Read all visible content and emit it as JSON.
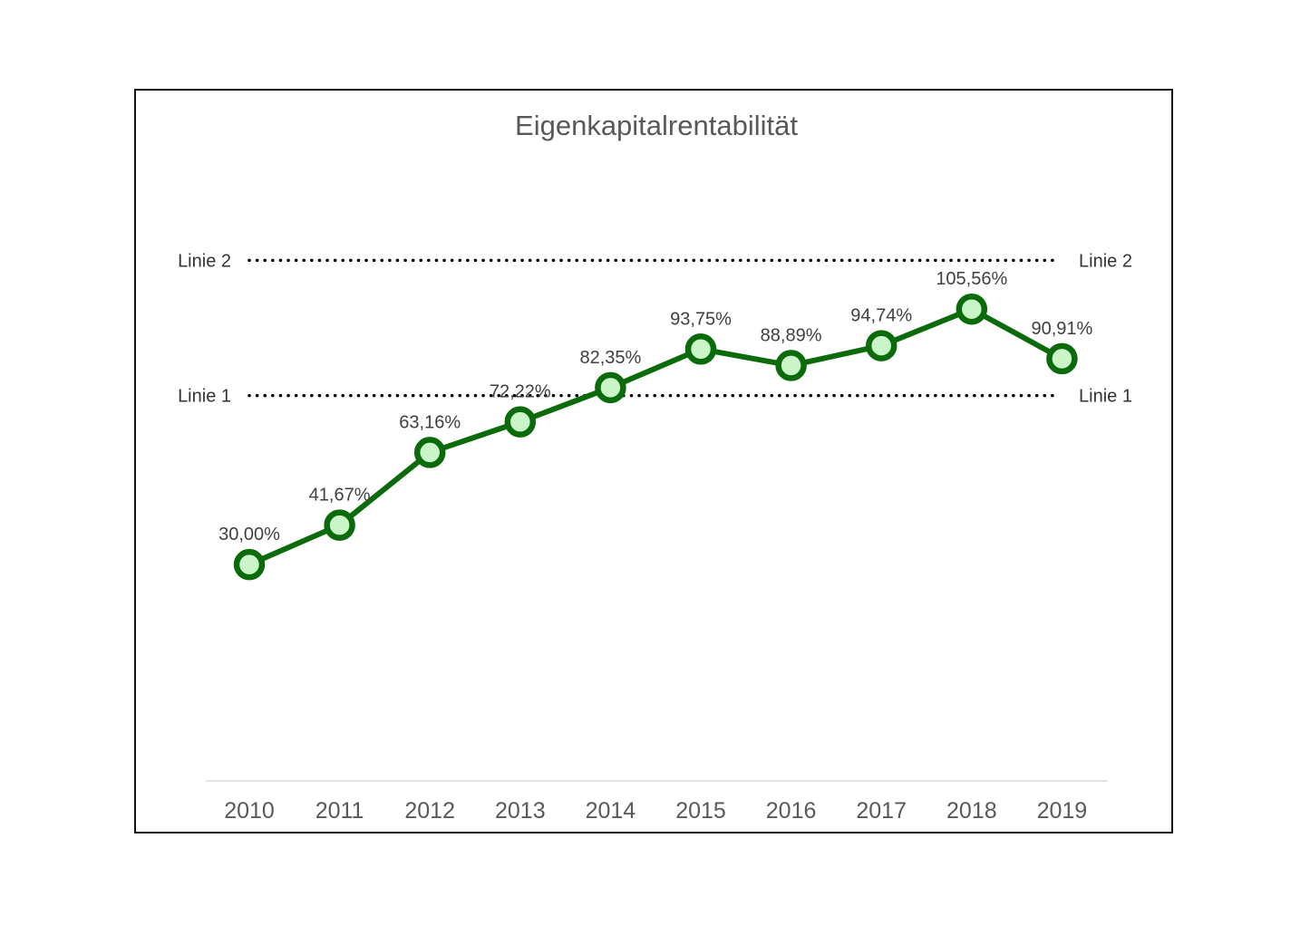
{
  "chart_data": {
    "type": "line",
    "title": "Eigenkapitalrentabilität",
    "xlabel": "",
    "ylabel": "",
    "categories": [
      "2010",
      "2011",
      "2012",
      "2013",
      "2014",
      "2015",
      "2016",
      "2017",
      "2018",
      "2019"
    ],
    "series": [
      {
        "values": [
          30.0,
          41.67,
          63.16,
          72.22,
          82.35,
          93.75,
          88.89,
          94.74,
          105.56,
          90.91
        ],
        "data_labels": [
          "30,00%",
          "41,67%",
          "63,16%",
          "72,22%",
          "82,35%",
          "93,75%",
          "88,89%",
          "94,74%",
          "105,56%",
          "90,91%"
        ],
        "color": "#0b6b0b",
        "marker_fill": "#c9f5c9"
      }
    ],
    "reference_lines": [
      {
        "label": "Linie 1",
        "value": 80,
        "style": "dotted",
        "color": "#000000"
      },
      {
        "label": "Linie 2",
        "value": 120,
        "style": "dotted",
        "color": "#000000"
      }
    ],
    "ylim": [
      -34,
      130
    ],
    "grid": false,
    "legend": "none",
    "y_axis_visible": false
  }
}
